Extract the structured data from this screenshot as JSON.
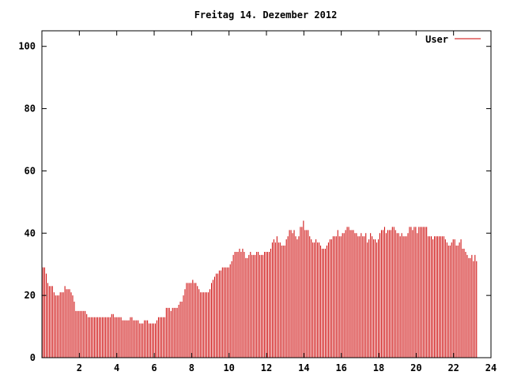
{
  "chart_data": {
    "type": "bar",
    "title": "Freitag 14. Dezember 2012",
    "xlabel": "",
    "ylabel": "",
    "xlim": [
      0,
      24
    ],
    "ylim": [
      0,
      105
    ],
    "x_ticks": [
      2,
      4,
      6,
      8,
      10,
      12,
      14,
      16,
      18,
      20,
      22,
      24
    ],
    "y_ticks": [
      0,
      20,
      40,
      60,
      80,
      100
    ],
    "legend_position": "top-right",
    "grid": false,
    "series": [
      {
        "name": "User",
        "color": "#cc0000",
        "interval_minutes": 5,
        "values": [
          29,
          29,
          27,
          24,
          23,
          23,
          23,
          21,
          20,
          20,
          20,
          21,
          21,
          21,
          23,
          22,
          22,
          22,
          21,
          20,
          18,
          15,
          15,
          15,
          15,
          15,
          15,
          15,
          14,
          13,
          13,
          13,
          13,
          13,
          13,
          13,
          13,
          13,
          13,
          13,
          13,
          13,
          13,
          13,
          14,
          14,
          13,
          13,
          13,
          13,
          13,
          12,
          12,
          12,
          12,
          12,
          13,
          13,
          12,
          12,
          12,
          12,
          11,
          11,
          11,
          12,
          12,
          12,
          11,
          11,
          11,
          11,
          11,
          12,
          13,
          13,
          13,
          13,
          13,
          16,
          16,
          16,
          15,
          16,
          16,
          16,
          16,
          17,
          18,
          18,
          20,
          22,
          24,
          24,
          24,
          24,
          25,
          24,
          24,
          23,
          22,
          21,
          21,
          21,
          21,
          21,
          21,
          22,
          24,
          25,
          26,
          27,
          27,
          28,
          28,
          29,
          29,
          29,
          29,
          29,
          30,
          31,
          33,
          34,
          34,
          34,
          35,
          34,
          35,
          34,
          32,
          32,
          33,
          34,
          33,
          33,
          33,
          34,
          34,
          33,
          33,
          33,
          34,
          34,
          34,
          34,
          35,
          37,
          38,
          37,
          39,
          37,
          37,
          36,
          36,
          36,
          38,
          39,
          41,
          41,
          40,
          41,
          39,
          38,
          39,
          42,
          42,
          44,
          41,
          41,
          41,
          39,
          38,
          37,
          37,
          38,
          37,
          37,
          36,
          35,
          35,
          35,
          36,
          37,
          38,
          38,
          39,
          39,
          39,
          41,
          39,
          39,
          40,
          40,
          41,
          42,
          42,
          41,
          41,
          41,
          40,
          40,
          39,
          39,
          40,
          39,
          39,
          40,
          37,
          38,
          40,
          39,
          38,
          38,
          37,
          38,
          40,
          41,
          41,
          42,
          40,
          41,
          41,
          41,
          42,
          42,
          41,
          40,
          40,
          39,
          40,
          39,
          39,
          39,
          40,
          42,
          42,
          41,
          42,
          42,
          40,
          42,
          42,
          42,
          42,
          42,
          42,
          39,
          39,
          39,
          38,
          39,
          39,
          39,
          39,
          39,
          39,
          39,
          38,
          37,
          36,
          36,
          37,
          38,
          38,
          36,
          36,
          37,
          38,
          35,
          35,
          34,
          33,
          32,
          32,
          33,
          31,
          33,
          31
        ]
      }
    ]
  }
}
